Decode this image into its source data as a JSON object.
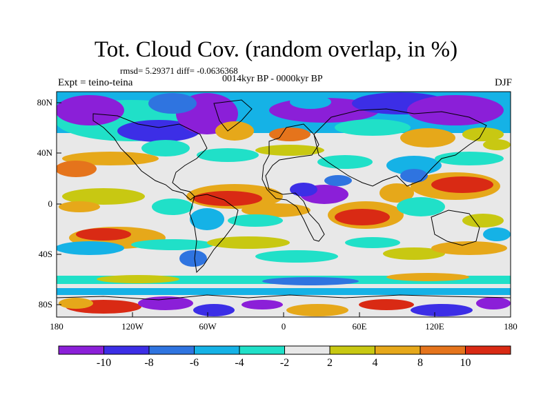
{
  "title": "Tot. Cloud Cov. (random overlap, in %)",
  "stats_line": "rmsd= 5.29371 diff= -0.0636368",
  "period": "0014kyr BP - 0000kyr BP",
  "experiment": "Expt = teino-teina",
  "season": "DJF",
  "y_axis_labels": [
    "80N",
    "40N",
    "0",
    "40S",
    "80S"
  ],
  "x_axis_labels": [
    "180",
    "120W",
    "60W",
    "0",
    "60E",
    "120E",
    "180"
  ],
  "colorbar": {
    "colors": [
      "#8b1fd8",
      "#3c2ee6",
      "#2f74e0",
      "#15b2e6",
      "#20e0c8",
      "#e8e8e8",
      "#c8c812",
      "#e6a81a",
      "#e5741c",
      "#d92a14"
    ],
    "labels": [
      "-10",
      "-8",
      "-6",
      "-4",
      "-2",
      "2",
      "4",
      "8",
      "10"
    ]
  }
}
